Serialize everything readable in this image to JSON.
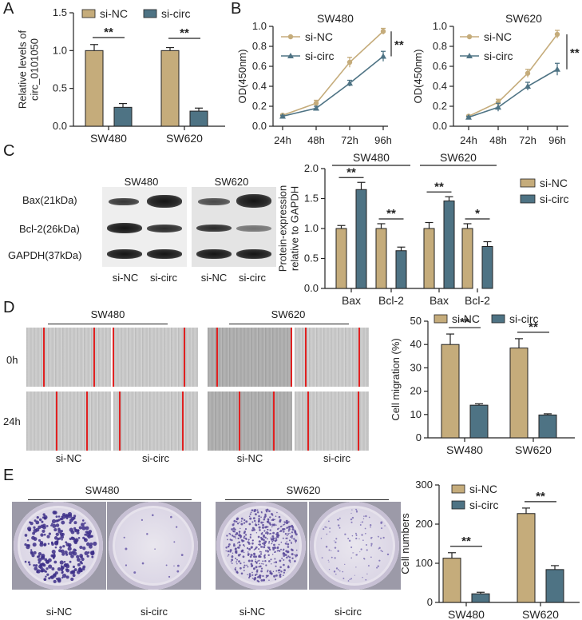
{
  "panels": {
    "A": "A",
    "B": "B",
    "C": "C",
    "D": "D",
    "E": "E"
  },
  "colors": {
    "si_nc": "#C5AC7B",
    "si_circ": "#4E7384"
  },
  "legend": {
    "si_nc": "si-NC",
    "si_circ": "si-circ"
  },
  "chart_data": [
    {
      "id": "A",
      "type": "bar",
      "categories": [
        "SW480",
        "SW620"
      ],
      "series": [
        {
          "name": "si-NC",
          "values": [
            1.0,
            1.0
          ],
          "err": [
            0.08,
            0.04
          ]
        },
        {
          "name": "si-circ",
          "values": [
            0.25,
            0.2
          ],
          "err": [
            0.05,
            0.04
          ]
        }
      ],
      "ylabel": "Relative levels of circ_0101050",
      "ylim": [
        0,
        1.5
      ],
      "yticks": [
        "0.0",
        "0.5",
        "1.0",
        "1.5"
      ],
      "significance": [
        "**",
        "**"
      ],
      "legend_position": "top"
    },
    {
      "id": "B1",
      "type": "line",
      "title": "SW480",
      "x": [
        "24h",
        "48h",
        "72h",
        "96h"
      ],
      "series": [
        {
          "name": "si-NC",
          "values": [
            0.11,
            0.23,
            0.64,
            0.95
          ],
          "err": [
            0.01,
            0.03,
            0.05,
            0.03
          ]
        },
        {
          "name": "si-circ",
          "values": [
            0.1,
            0.18,
            0.43,
            0.7
          ],
          "err": [
            0.01,
            0.02,
            0.03,
            0.05
          ]
        }
      ],
      "ylabel": "OD(450nm)",
      "ylim": [
        0,
        1.0
      ],
      "yticks": [
        "0.0",
        "0.2",
        "0.4",
        "0.6",
        "0.8",
        "1.0"
      ],
      "significance": "**"
    },
    {
      "id": "B2",
      "type": "line",
      "title": "SW620",
      "x": [
        "24h",
        "48h",
        "72h",
        "96h"
      ],
      "series": [
        {
          "name": "si-NC",
          "values": [
            0.1,
            0.24,
            0.53,
            0.92
          ],
          "err": [
            0.01,
            0.03,
            0.04,
            0.04
          ]
        },
        {
          "name": "si-circ",
          "values": [
            0.09,
            0.19,
            0.4,
            0.57
          ],
          "err": [
            0.01,
            0.04,
            0.04,
            0.06
          ]
        }
      ],
      "ylabel": "OD(450nm)",
      "ylim": [
        0,
        1.0
      ],
      "yticks": [
        "0.0",
        "0.2",
        "0.4",
        "0.6",
        "0.8",
        "1.0"
      ],
      "significance": "**"
    },
    {
      "id": "C",
      "type": "bar",
      "groups": [
        "SW480",
        "SW620"
      ],
      "categories": [
        "Bax",
        "Bcl-2",
        "Bax",
        "Bcl-2"
      ],
      "series": [
        {
          "name": "si-NC",
          "values": [
            1.0,
            1.0,
            1.0,
            1.0
          ],
          "err": [
            0.05,
            0.08,
            0.1,
            0.08
          ]
        },
        {
          "name": "si-circ",
          "values": [
            1.65,
            0.63,
            1.46,
            0.7
          ],
          "err": [
            0.12,
            0.06,
            0.07,
            0.08
          ]
        }
      ],
      "ylabel": "Protein-expression relative to GAPDH",
      "ylim": [
        0,
        2.0
      ],
      "yticks": [
        "0.0",
        "0.5",
        "1.0",
        "1.5",
        "2.0"
      ],
      "significance": [
        "**",
        "**",
        "**",
        "*"
      ],
      "legend_position": "right"
    },
    {
      "id": "D",
      "type": "bar",
      "categories": [
        "SW480",
        "SW620"
      ],
      "series": [
        {
          "name": "si-NC",
          "values": [
            40,
            38.5
          ],
          "err": [
            4.5,
            4.0
          ]
        },
        {
          "name": "si-circ",
          "values": [
            14,
            9.8
          ],
          "err": [
            0.6,
            0.5
          ]
        }
      ],
      "ylabel": "Cell migration (%)",
      "ylim": [
        0,
        50
      ],
      "yticks": [
        "0",
        "10",
        "20",
        "30",
        "40",
        "50"
      ],
      "significance": [
        "**",
        "**"
      ],
      "legend_position": "top"
    },
    {
      "id": "E",
      "type": "bar",
      "categories": [
        "SW480",
        "SW620"
      ],
      "series": [
        {
          "name": "si-NC",
          "values": [
            113,
            227
          ],
          "err": [
            14,
            14
          ]
        },
        {
          "name": "si-circ",
          "values": [
            22,
            84
          ],
          "err": [
            4,
            10
          ]
        }
      ],
      "ylabel": "Cell numbers",
      "ylim": [
        0,
        300
      ],
      "yticks": [
        "0",
        "100",
        "200",
        "300"
      ],
      "significance": [
        "**",
        "**"
      ],
      "legend_position": "top-left"
    }
  ],
  "blot": {
    "cell_lines": [
      "SW480",
      "SW620"
    ],
    "proteins": [
      "Bax(21kDa)",
      "Bcl-2(26kDa)",
      "GAPDH(37kDa)"
    ],
    "lanes": [
      "si-NC",
      "si-circ",
      "si-NC",
      "si-circ"
    ]
  },
  "wound": {
    "cell_lines": [
      "SW480",
      "SW620"
    ],
    "timepoints": [
      "0h",
      "24h"
    ],
    "lanes": [
      "si-NC",
      "si-circ",
      "si-NC",
      "si-circ"
    ]
  },
  "colony": {
    "cell_lines": [
      "SW480",
      "SW620"
    ],
    "lanes": [
      "si-NC",
      "si-circ",
      "si-NC",
      "si-circ"
    ]
  }
}
